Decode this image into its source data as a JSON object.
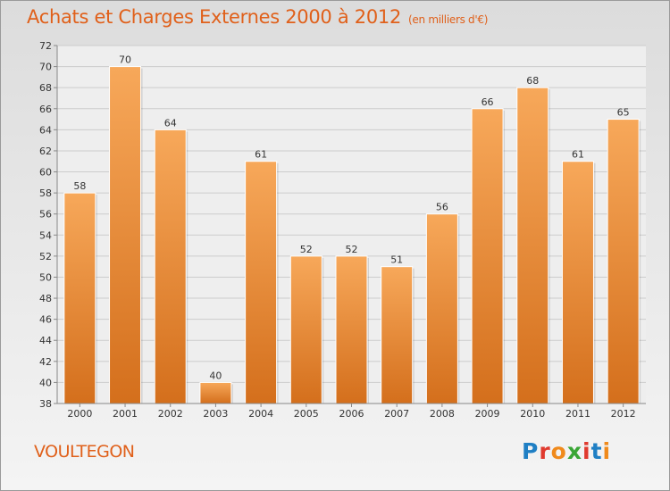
{
  "title": "Achats et Charges Externes 2000 à 2012",
  "unit": "(en milliers d'€)",
  "region": "VOULTEGON",
  "logo": {
    "text": "Proxiti",
    "letters": [
      "P",
      "r",
      "o",
      "x",
      "i",
      "t",
      "i"
    ],
    "colors": [
      "#1f7fc4",
      "#e03a2e",
      "#f08a1c",
      "#3aa635",
      "#e03a2e",
      "#1f7fc4",
      "#f08a1c"
    ]
  },
  "colors": {
    "bar_light": "#f7a85a",
    "bar_dark": "#d46f1c",
    "accent": "#e0601a",
    "grid": "#cccccc"
  },
  "chart_data": {
    "type": "bar",
    "title": "Achats et Charges Externes 2000 à 2012",
    "subtitle": "(en milliers d'€)",
    "categories": [
      "2000",
      "2001",
      "2002",
      "2003",
      "2004",
      "2005",
      "2006",
      "2007",
      "2008",
      "2009",
      "2010",
      "2011",
      "2012"
    ],
    "values": [
      58,
      70,
      64,
      40,
      61,
      52,
      52,
      51,
      56,
      66,
      68,
      61,
      65
    ],
    "ylim": [
      38,
      72
    ],
    "yticks": [
      38,
      40,
      42,
      44,
      46,
      48,
      50,
      52,
      54,
      56,
      58,
      60,
      62,
      64,
      66,
      68,
      70,
      72
    ],
    "grid": true,
    "data_labels": true
  }
}
